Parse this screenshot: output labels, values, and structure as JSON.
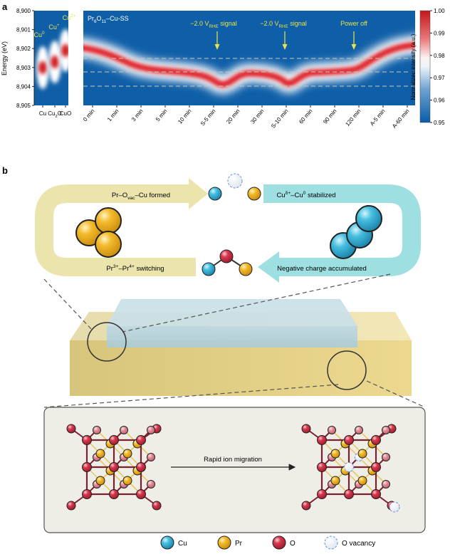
{
  "panel_a": {
    "label": "a",
    "y_axis_label": "Energy (eV)",
    "y_ticks": [
      "8,900",
      "8,901",
      "8,902",
      "8,903",
      "8,904",
      "8,905"
    ],
    "reference_states": [
      [
        "Cu",
        "0"
      ],
      [
        "Cu",
        "+"
      ],
      [
        "Cu",
        "2+"
      ]
    ],
    "reference_names": [
      [
        "Cu"
      ],
      [
        "Cu",
        "2",
        "O"
      ],
      [
        "CuO"
      ]
    ],
    "sample": [
      "Pr",
      "6",
      "O",
      "11",
      "–Cu-SS"
    ],
    "time_labels": [
      "0 min",
      "1 min",
      "3 min",
      "5 min",
      "10 min",
      "S-5 min",
      "20 min",
      "30 min",
      "S-10 min",
      "60 min",
      "90 min",
      "120 min",
      "A-5 min",
      "A-60 min"
    ],
    "annotations": [
      [
        "−2.0 V",
        "RHE",
        " signal"
      ],
      [
        "−2.0 V",
        "RHE",
        " signal"
      ],
      [
        "Power off"
      ]
    ],
    "colorbar": {
      "label": "Normalized intensity (a.u.)",
      "ticks": [
        "1.00",
        "0.99",
        "0.98",
        "0.97",
        "0.96",
        "0.95"
      ]
    }
  },
  "panel_b": {
    "label": "b",
    "cycle": {
      "formed": [
        "Pr–O",
        "vac",
        "–Cu formed"
      ],
      "stabilized": [
        "Cu",
        "δ+",
        "–Cu",
        "0",
        " stabilized"
      ],
      "switching": [
        "Pr",
        "3+",
        "–Pr",
        "4+",
        " switching"
      ],
      "accumulated": [
        "Negative charge accumulated"
      ]
    },
    "migration": "Rapid ion migration",
    "legend": [
      "Cu",
      "Pr",
      "O",
      "O vacancy"
    ]
  }
}
